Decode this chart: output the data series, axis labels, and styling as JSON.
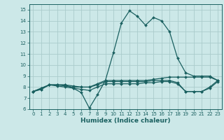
{
  "title": "",
  "xlabel": "Humidex (Indice chaleur)",
  "ylabel": "",
  "xlim": [
    -0.5,
    23.5
  ],
  "ylim": [
    6,
    15.5
  ],
  "yticks": [
    6,
    7,
    8,
    9,
    10,
    11,
    12,
    13,
    14,
    15
  ],
  "xticks": [
    0,
    1,
    2,
    3,
    4,
    5,
    6,
    7,
    8,
    9,
    10,
    11,
    12,
    13,
    14,
    15,
    16,
    17,
    18,
    19,
    20,
    21,
    22,
    23
  ],
  "bg_color": "#cce8e8",
  "grid_color": "#aacccc",
  "line_color": "#1a6060",
  "series": [
    [
      7.6,
      7.9,
      8.2,
      8.2,
      8.2,
      7.9,
      7.5,
      6.1,
      7.3,
      8.6,
      11.1,
      13.8,
      14.9,
      14.4,
      13.6,
      14.3,
      14.0,
      13.0,
      10.6,
      9.3,
      9.0,
      9.0,
      9.0,
      8.6
    ],
    [
      7.6,
      7.9,
      8.2,
      8.2,
      8.2,
      8.1,
      8.0,
      8.0,
      8.3,
      8.6,
      8.6,
      8.6,
      8.6,
      8.6,
      8.6,
      8.7,
      8.8,
      8.9,
      8.9,
      8.9,
      8.9,
      8.9,
      8.9,
      8.6
    ],
    [
      7.6,
      7.8,
      8.2,
      8.2,
      8.1,
      8.0,
      8.0,
      8.0,
      8.2,
      8.5,
      8.5,
      8.5,
      8.5,
      8.5,
      8.5,
      8.6,
      8.6,
      8.6,
      8.4,
      7.6,
      7.6,
      7.6,
      8.0,
      8.6
    ],
    [
      7.6,
      7.8,
      8.2,
      8.1,
      8.0,
      7.9,
      7.8,
      7.7,
      8.0,
      8.3,
      8.3,
      8.3,
      8.3,
      8.3,
      8.4,
      8.4,
      8.5,
      8.5,
      8.3,
      7.6,
      7.6,
      7.6,
      7.9,
      8.5
    ]
  ]
}
